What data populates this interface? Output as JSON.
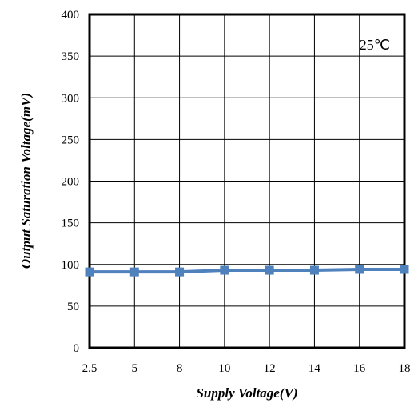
{
  "chart_data": {
    "type": "line",
    "title": "",
    "xlabel": "Supply Voltage(V)",
    "ylabel": "Output Saturation Voltage(mV)",
    "categories": [
      "2.5",
      "5",
      "8",
      "10",
      "12",
      "14",
      "16",
      "18"
    ],
    "ylim": [
      0,
      400
    ],
    "yticks": [
      0,
      50,
      100,
      150,
      200,
      250,
      300,
      350,
      400
    ],
    "grid": true,
    "annotation": "25℃",
    "series": [
      {
        "values": [
          91,
          91,
          91,
          93,
          93,
          93,
          94,
          94
        ],
        "color": "#4F81BD",
        "marker": "square"
      }
    ]
  }
}
